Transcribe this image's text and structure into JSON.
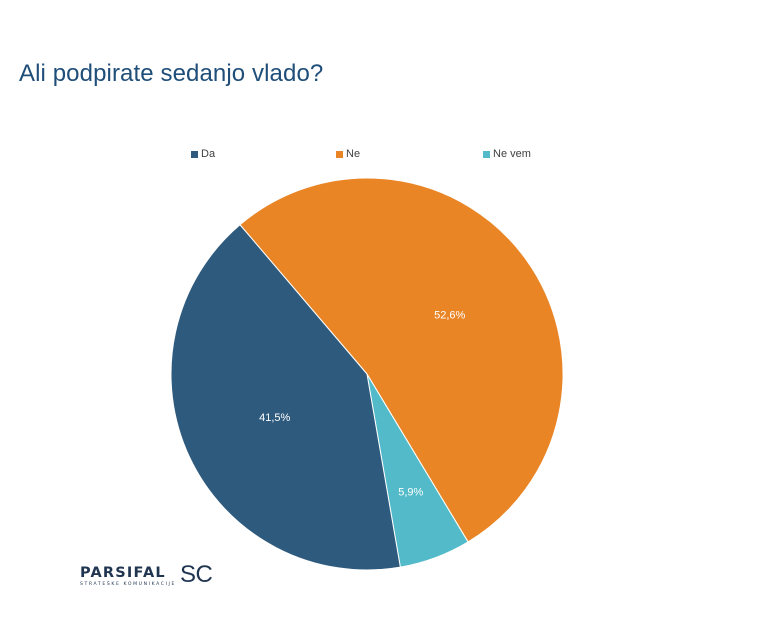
{
  "page": {
    "title": "Ali podpirate sedanjo vlado?"
  },
  "logo": {
    "main": "PARSIFAL",
    "suffix": "SC",
    "subtitle": "STRATEŠKE KOMUNIKACIJE"
  },
  "chart_data": {
    "type": "pie",
    "title": "Ali podpirate sedanjo vlado?",
    "legend_position": "top",
    "slices": [
      {
        "label": "Da",
        "value": 41.5,
        "display": "41,5%",
        "color": "#2e5a7e"
      },
      {
        "label": "Ne",
        "value": 52.6,
        "display": "52,6%",
        "color": "#e98525"
      },
      {
        "label": "Ne vem",
        "value": 5.9,
        "display": "5,9%",
        "color": "#52bac8"
      }
    ]
  }
}
